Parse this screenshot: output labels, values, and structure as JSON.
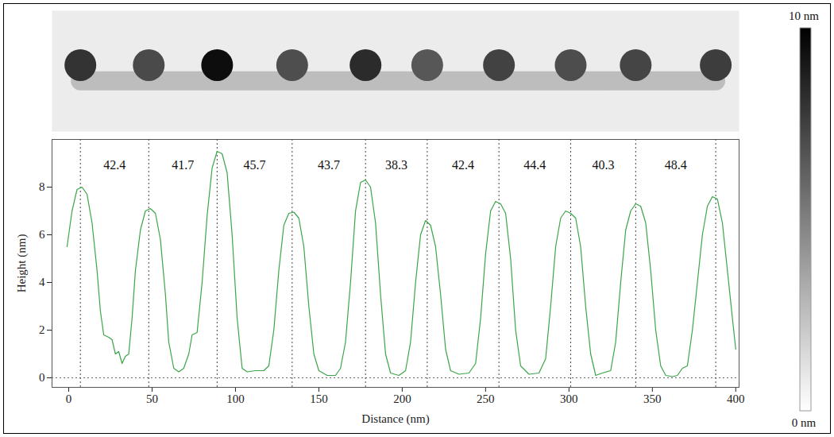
{
  "chart_data": {
    "type": "line",
    "xlabel": "Distance (nm)",
    "ylabel": "Height (nm)",
    "color": "#3aa648",
    "line_style": "solid",
    "x": [
      -1,
      2,
      5,
      8,
      11,
      14,
      17,
      19,
      21,
      24,
      26,
      28,
      30,
      32,
      34,
      36,
      38,
      40,
      43,
      46,
      49,
      52,
      55,
      58,
      60,
      63,
      66,
      69,
      72,
      74,
      77,
      80,
      83,
      86,
      89,
      92,
      95,
      98,
      101,
      104,
      107,
      112,
      117,
      120,
      123,
      126,
      129,
      132,
      135,
      138,
      141,
      144,
      147,
      150,
      155,
      160,
      163,
      166,
      169,
      172,
      175,
      178,
      181,
      184,
      187,
      190,
      193,
      198,
      202,
      205,
      208,
      211,
      214,
      217,
      220,
      223,
      226,
      229,
      234,
      240,
      244,
      247,
      250,
      253,
      256,
      259,
      262,
      265,
      268,
      271,
      276,
      282,
      286,
      289,
      292,
      295,
      298,
      301,
      304,
      307,
      310,
      313,
      316,
      320,
      325,
      328,
      331,
      334,
      337,
      340,
      343,
      346,
      349,
      352,
      355,
      358,
      362,
      365,
      368,
      371,
      374,
      377,
      380,
      383,
      386,
      389,
      392,
      395,
      398,
      400
    ],
    "values": [
      5.5,
      7.0,
      7.9,
      8.0,
      7.7,
      6.5,
      4.5,
      2.8,
      1.8,
      1.7,
      1.6,
      1.0,
      1.1,
      0.6,
      0.9,
      1.0,
      2.5,
      4.5,
      6.2,
      7.0,
      7.1,
      6.9,
      5.8,
      3.5,
      1.5,
      0.4,
      0.25,
      0.4,
      1.0,
      1.8,
      1.9,
      4.0,
      6.8,
      8.8,
      9.5,
      9.4,
      8.6,
      6.0,
      2.5,
      0.4,
      0.25,
      0.3,
      0.3,
      0.5,
      2.0,
      4.5,
      6.4,
      6.9,
      6.95,
      6.7,
      5.5,
      3.0,
      1.0,
      0.3,
      0.1,
      0.1,
      0.4,
      1.5,
      4.0,
      7.0,
      8.2,
      8.3,
      8.0,
      6.5,
      3.5,
      1.0,
      0.2,
      0.1,
      0.3,
      1.5,
      4.0,
      6.0,
      6.6,
      6.4,
      5.5,
      3.5,
      1.2,
      0.3,
      0.15,
      0.2,
      0.6,
      2.5,
      5.2,
      7.0,
      7.4,
      7.3,
      6.9,
      5.0,
      2.0,
      0.5,
      0.15,
      0.2,
      0.8,
      3.0,
      5.5,
      6.7,
      7.0,
      6.9,
      6.7,
      5.5,
      3.0,
      1.0,
      0.1,
      0.2,
      0.3,
      1.5,
      4.0,
      6.2,
      7.0,
      7.3,
      7.2,
      6.5,
      4.5,
      2.0,
      0.5,
      0.1,
      0.05,
      0.1,
      0.4,
      0.5,
      2.0,
      4.0,
      6.0,
      7.2,
      7.6,
      7.5,
      6.5,
      4.5,
      2.5,
      1.2
    ],
    "xlim": [
      -10,
      402
    ],
    "ylim": [
      -0.4,
      10
    ],
    "xticks": [
      0,
      50,
      100,
      150,
      200,
      250,
      300,
      350,
      400
    ],
    "yticks": [
      0,
      2,
      4,
      6,
      8
    ],
    "peaks": [
      7,
      48,
      89,
      134,
      178,
      215,
      258,
      301,
      340,
      388
    ],
    "spacings": [
      42.4,
      41.7,
      45.7,
      43.7,
      38.3,
      42.4,
      44.4,
      40.3,
      48.4
    ],
    "colorbar": {
      "range": [
        0,
        10
      ],
      "ticks": [
        {
          "value": 10,
          "label": "10 nm"
        },
        {
          "value": 0,
          "label": "0 nm"
        }
      ]
    }
  }
}
